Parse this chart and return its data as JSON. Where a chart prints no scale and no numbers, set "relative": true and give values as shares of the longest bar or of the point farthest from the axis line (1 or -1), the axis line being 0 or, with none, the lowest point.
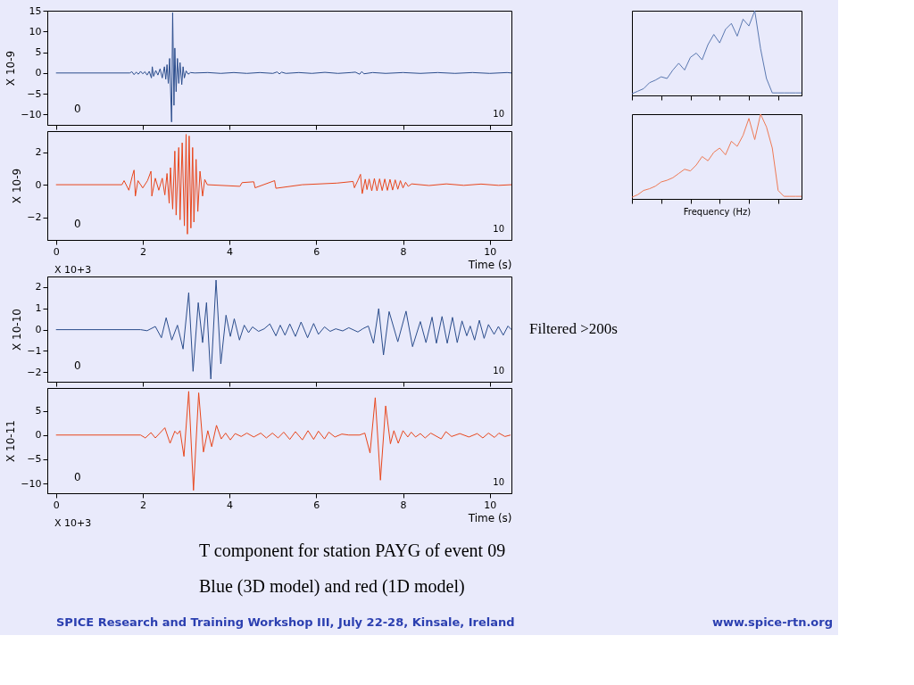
{
  "chart_data": [
    {
      "type": "line",
      "ylabel": "X 10-9",
      "xlim": [
        -0.2,
        10.5
      ],
      "xticks": [
        0,
        2,
        4,
        6,
        8,
        10
      ],
      "ylim": [
        -12.5,
        15
      ],
      "yticks": [
        -10,
        -5,
        0,
        5,
        10,
        15
      ],
      "tick_labels": "y",
      "annotations": [
        "0",
        "10"
      ],
      "series": [
        {
          "color": "#2b4d8c",
          "x": [
            0,
            1.7,
            1.75,
            1.8,
            1.85,
            1.9,
            1.95,
            2.0,
            2.05,
            2.1,
            2.15,
            2.2,
            2.22,
            2.25,
            2.3,
            2.35,
            2.4,
            2.45,
            2.5,
            2.53,
            2.56,
            2.59,
            2.62,
            2.665,
            2.69,
            2.72,
            2.74,
            2.77,
            2.8,
            2.83,
            2.86,
            2.9,
            2.93,
            2.96,
            3.0,
            3.05,
            3.1,
            3.2,
            3.5,
            3.8,
            4.1,
            4.4,
            4.7,
            5.0,
            5.1,
            5.15,
            5.2,
            5.3,
            5.6,
            5.9,
            6.2,
            6.5,
            6.8,
            6.9,
            7.0,
            7.05,
            7.1,
            7.3,
            7.6,
            8.0,
            8.4,
            8.8,
            9.2,
            9.6,
            10.0,
            10.4,
            10.5
          ],
          "values": [
            0,
            0,
            0.3,
            -0.4,
            0.2,
            -0.3,
            0.4,
            -0.2,
            0.3,
            -0.5,
            0.4,
            -1.2,
            1.5,
            -0.8,
            0.6,
            -0.5,
            1.0,
            -1.2,
            1.5,
            -1.5,
            2.0,
            -2.5,
            3.5,
            -11.8,
            14.5,
            -7.8,
            6,
            -4.5,
            3.5,
            -2.5,
            2.5,
            -2.8,
            1.5,
            -1.2,
            0.5,
            -0.3,
            0.1,
            0,
            0.1,
            -0.1,
            0.1,
            -0.1,
            0.1,
            -0.1,
            0.25,
            -0.25,
            0.2,
            -0.1,
            0.1,
            -0.1,
            0.15,
            -0.1,
            0.1,
            0.2,
            -0.3,
            0.35,
            -0.2,
            0.1,
            -0.1,
            0.1,
            -0.1,
            0.1,
            -0.1,
            0.1,
            -0.1,
            0.1,
            0
          ]
        }
      ]
    },
    {
      "type": "line",
      "xlabel": "Time (s)",
      "ylabel": "X 10-9",
      "xlim": [
        -0.2,
        10.5
      ],
      "xticks": [
        0,
        2,
        4,
        6,
        8,
        10
      ],
      "ylim": [
        -3.4,
        3.3
      ],
      "yticks": [
        -2,
        0,
        2
      ],
      "annotations": [
        "0",
        "10",
        "X 10+3"
      ],
      "series": [
        {
          "color": "#e8461c",
          "x": [
            0,
            1.52,
            1.57,
            1.68,
            1.76,
            1.8,
            1.83,
            1.89,
            2.0,
            2.11,
            2.19,
            2.21,
            2.29,
            2.37,
            2.45,
            2.51,
            2.56,
            2.61,
            2.64,
            2.69,
            2.74,
            2.77,
            2.83,
            2.86,
            2.91,
            2.96,
            3.0,
            3.03,
            3.07,
            3.11,
            3.15,
            3.18,
            3.23,
            3.27,
            3.32,
            3.38,
            3.43,
            3.49,
            4.24,
            4.29,
            4.56,
            4.59,
            5.04,
            5.07,
            5.68,
            6.48,
            6.85,
            6.88,
            6.96,
            7.02,
            7.06,
            7.13,
            7.17,
            7.22,
            7.28,
            7.34,
            7.4,
            7.46,
            7.52,
            7.58,
            7.64,
            7.7,
            7.76,
            7.82,
            7.88,
            7.94,
            8.0,
            8.06,
            8.12,
            8.2,
            8.6,
            9.0,
            9.4,
            9.8,
            10.2,
            10.5
          ],
          "values": [
            0,
            0,
            0.25,
            -0.34,
            0.54,
            0.9,
            -0.7,
            0.25,
            -0.2,
            0.25,
            0.83,
            -0.7,
            0.4,
            -0.34,
            0.4,
            -0.63,
            0.69,
            -1.14,
            1.05,
            -1.5,
            2.07,
            -1.87,
            2.29,
            -2.16,
            2.58,
            -2.53,
            3.1,
            -3.04,
            3.0,
            -2.67,
            2.29,
            -2.3,
            1.56,
            -1.65,
            0.83,
            -0.7,
            0.32,
            0,
            -0.1,
            0.13,
            0.18,
            -0.19,
            0.25,
            -0.22,
            0,
            0.1,
            0.2,
            -0.19,
            0.27,
            0.64,
            -0.55,
            0.34,
            -0.3,
            0.35,
            -0.38,
            0.38,
            -0.38,
            0.36,
            -0.36,
            0.35,
            -0.35,
            0.33,
            -0.33,
            0.3,
            -0.28,
            0.25,
            -0.2,
            0.15,
            -0.1,
            0.05,
            -0.05,
            0.05,
            -0.04,
            0.04,
            -0.04,
            0
          ]
        }
      ]
    },
    {
      "type": "line",
      "ylabel": "X 10-10",
      "xlim": [
        -0.2,
        10.5
      ],
      "xticks": [
        0,
        2,
        4,
        6,
        8,
        10
      ],
      "ylim": [
        -2.45,
        2.5
      ],
      "yticks": [
        -2,
        -1,
        0,
        1,
        2
      ],
      "tick_labels": "y",
      "annotations": [
        "0",
        "10",
        "Filtered >200s"
      ],
      "series": [
        {
          "color": "#2b4d8c",
          "x": [
            0,
            1.95,
            2.1,
            2.29,
            2.43,
            2.54,
            2.67,
            2.8,
            2.93,
            3.06,
            3.16,
            3.28,
            3.38,
            3.47,
            3.57,
            3.69,
            3.8,
            3.92,
            4.02,
            4.11,
            4.23,
            4.34,
            4.44,
            4.53,
            4.67,
            4.8,
            4.93,
            5.07,
            5.17,
            5.28,
            5.39,
            5.52,
            5.65,
            5.8,
            5.94,
            6.05,
            6.19,
            6.32,
            6.45,
            6.61,
            6.75,
            6.96,
            7.08,
            7.2,
            7.32,
            7.44,
            7.55,
            7.68,
            7.88,
            8.07,
            8.22,
            8.4,
            8.53,
            8.67,
            8.77,
            8.9,
            9.02,
            9.14,
            9.25,
            9.36,
            9.47,
            9.55,
            9.65,
            9.76,
            9.87,
            9.97,
            10.1,
            10.2,
            10.31,
            10.42,
            10.5
          ],
          "values": [
            0,
            0,
            -0.05,
            0.15,
            -0.38,
            0.56,
            -0.49,
            0.21,
            -0.91,
            1.74,
            -1.96,
            1.27,
            -0.61,
            1.27,
            -2.32,
            2.33,
            -1.61,
            0.68,
            -0.32,
            0.51,
            -0.49,
            0.21,
            -0.14,
            0.13,
            -0.08,
            0.04,
            0.27,
            -0.29,
            0.21,
            -0.26,
            0.27,
            -0.32,
            0.36,
            -0.38,
            0.29,
            -0.22,
            0.13,
            -0.08,
            0.04,
            -0.06,
            0.09,
            -0.11,
            0.05,
            0.17,
            -0.64,
            0.99,
            -1.19,
            0.85,
            -0.57,
            0.87,
            -0.8,
            0.38,
            -0.61,
            0.59,
            -0.64,
            0.62,
            -0.64,
            0.58,
            -0.61,
            0.41,
            -0.29,
            0.17,
            -0.49,
            0.44,
            -0.41,
            0.24,
            -0.22,
            0.15,
            -0.26,
            0.17,
            0
          ]
        }
      ]
    },
    {
      "type": "line",
      "xlabel": "Time (s)",
      "ylabel": "X 10-11",
      "xlim": [
        -0.2,
        10.5
      ],
      "xticks": [
        0,
        2,
        4,
        6,
        8,
        10
      ],
      "ylim": [
        -12,
        9.7
      ],
      "yticks": [
        -10,
        -5,
        0,
        5
      ],
      "annotations": [
        "0",
        "10",
        "X 10+3"
      ],
      "series": [
        {
          "color": "#e8461c",
          "x": [
            0,
            1.95,
            2.06,
            2.19,
            2.29,
            2.51,
            2.63,
            2.74,
            2.8,
            2.86,
            2.95,
            3.06,
            3.17,
            3.29,
            3.4,
            3.5,
            3.59,
            3.7,
            3.81,
            3.91,
            4.02,
            4.13,
            4.27,
            4.4,
            4.56,
            4.72,
            4.85,
            4.99,
            5.12,
            5.25,
            5.39,
            5.52,
            5.68,
            5.81,
            5.94,
            6.05,
            6.19,
            6.29,
            6.43,
            6.59,
            6.75,
            7.0,
            7.12,
            7.24,
            7.36,
            7.48,
            7.6,
            7.71,
            7.79,
            7.89,
            8.0,
            8.11,
            8.19,
            8.29,
            8.4,
            8.51,
            8.64,
            8.88,
            8.99,
            9.12,
            9.31,
            9.52,
            9.71,
            9.84,
            9.97,
            10.11,
            10.21,
            10.35,
            10.48
          ],
          "values": [
            0,
            0,
            -0.6,
            0.5,
            -0.6,
            1.5,
            -1.7,
            0.8,
            0.2,
            0.9,
            -4.4,
            9.0,
            -11.4,
            8.7,
            -3.5,
            0.9,
            -2.4,
            2.0,
            -0.8,
            0.4,
            -1.0,
            0.3,
            -0.3,
            0.4,
            -0.4,
            0.4,
            -0.6,
            0.4,
            -0.6,
            0.6,
            -0.9,
            0.7,
            -1.0,
            0.9,
            -0.9,
            0.8,
            -0.8,
            0.6,
            -0.4,
            0.2,
            0,
            0,
            0.4,
            -3.7,
            7.7,
            -9.3,
            6.0,
            -1.8,
            0.9,
            -1.7,
            0.9,
            -0.4,
            0.6,
            -0.4,
            0.3,
            -0.6,
            0.4,
            -0.8,
            0.7,
            -0.3,
            0.3,
            -0.4,
            0.3,
            -0.6,
            0.4,
            -0.5,
            0.4,
            -0.3,
            0
          ]
        }
      ]
    },
    {
      "type": "line",
      "relative": true,
      "categories": [
        null,
        null,
        null,
        null,
        null,
        null,
        null,
        null,
        null,
        null,
        null,
        null,
        null,
        null,
        null,
        null,
        null,
        null,
        null,
        null,
        null,
        null,
        null,
        null,
        null,
        null,
        null,
        null,
        null,
        null
      ],
      "series": [
        {
          "color": "#5a78b0",
          "values": [
            0.02,
            0.05,
            0.08,
            0.15,
            0.18,
            0.22,
            0.2,
            0.3,
            0.38,
            0.3,
            0.45,
            0.5,
            0.42,
            0.6,
            0.72,
            0.62,
            0.78,
            0.85,
            0.7,
            0.9,
            0.82,
            1.0,
            0.55,
            0.2,
            0.03,
            0.03,
            0.03,
            0.03,
            0.03,
            0.03
          ]
        }
      ]
    },
    {
      "type": "line",
      "relative": true,
      "xlabel": "Frequency (Hz)",
      "categories": [
        null,
        null,
        null,
        null,
        null,
        null,
        null,
        null,
        null,
        null,
        null,
        null,
        null,
        null,
        null,
        null,
        null,
        null,
        null,
        null,
        null,
        null,
        null,
        null,
        null,
        null,
        null,
        null,
        null,
        null
      ],
      "series": [
        {
          "color": "#ee7a55",
          "values": [
            0.02,
            0.05,
            0.1,
            0.12,
            0.15,
            0.2,
            0.22,
            0.25,
            0.3,
            0.35,
            0.33,
            0.4,
            0.5,
            0.45,
            0.55,
            0.6,
            0.52,
            0.68,
            0.62,
            0.75,
            0.95,
            0.7,
            1.0,
            0.85,
            0.6,
            0.1,
            0.03,
            0.03,
            0.03,
            0.03
          ]
        }
      ]
    },
    {
      "type": "other",
      "annotations": [
        "T component  for station PAYG of event 09",
        "Blue (3D model) and red (1D model)",
        "SPICE Research and Training Workshop III, July 22-28, Kinsale, Ireland",
        "www.spice-rtn.org"
      ]
    }
  ]
}
